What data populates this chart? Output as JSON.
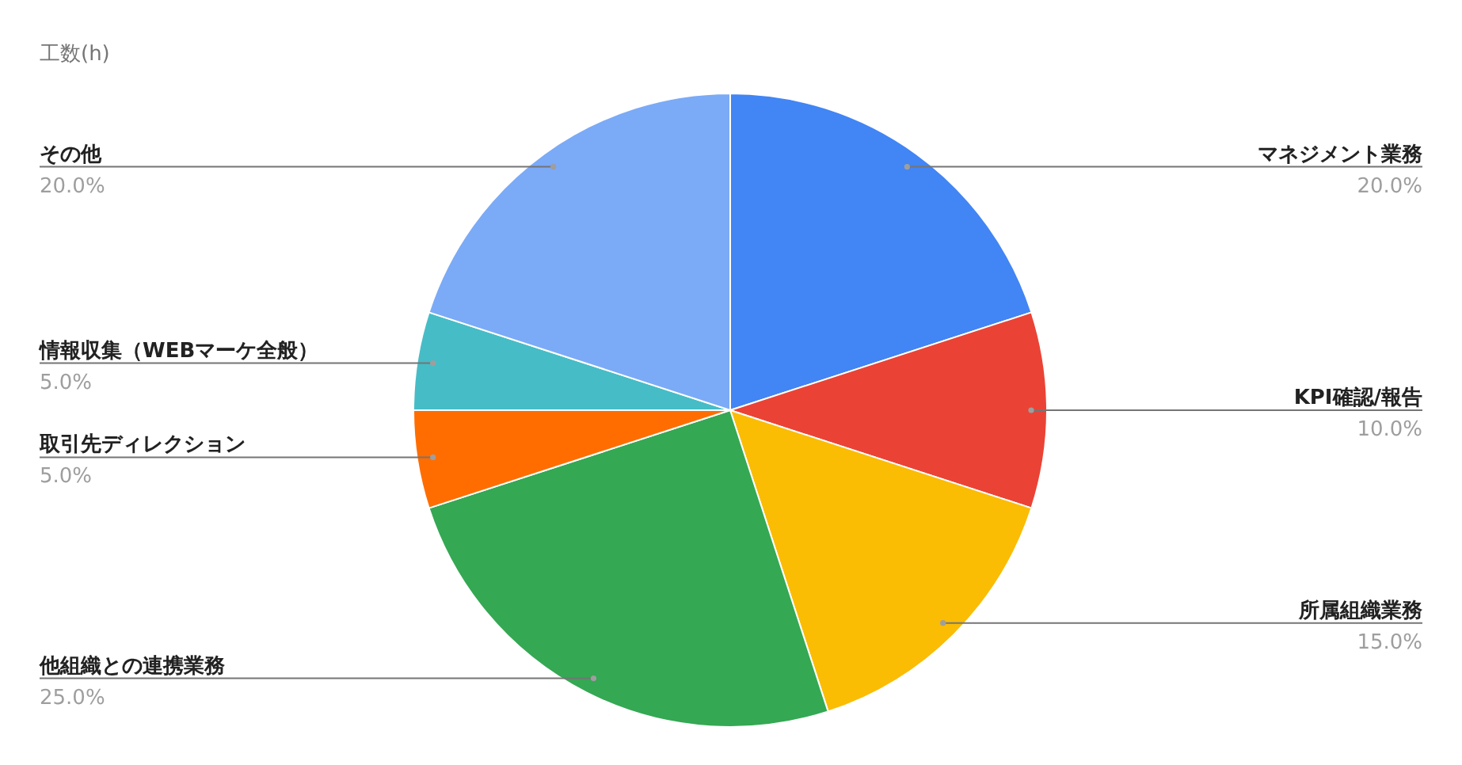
{
  "chart_data": {
    "type": "pie",
    "title": "工数(h)",
    "categories": [
      "マネジメント業務",
      "KPI確認/報告",
      "所属組織業務",
      "他組織との連携業務",
      "取引先ディレクション",
      "情報収集（WEBマーケ全般）",
      "その他"
    ],
    "values": [
      20,
      10,
      15,
      25,
      5,
      5,
      20
    ],
    "colors": [
      "#4285f4",
      "#ea4335",
      "#fbbc04",
      "#34a853",
      "#ff6d01",
      "#46bdc6",
      "#7baaf7"
    ],
    "value_labels": [
      "20.0%",
      "10.0%",
      "15.0%",
      "25.0%",
      "5.0%",
      "5.0%",
      "20.0%"
    ]
  }
}
